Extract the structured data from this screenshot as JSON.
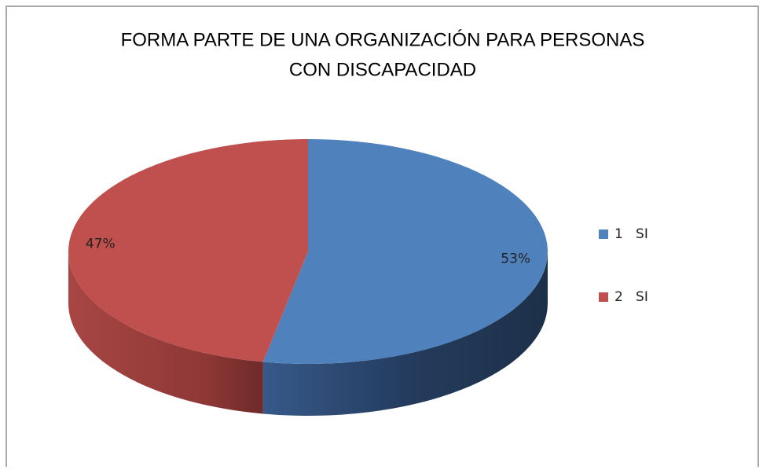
{
  "chart_data": {
    "type": "pie",
    "title": [
      "FORMA PARTE DE UNA ORGANIZACIÓN PARA PERSONAS",
      "CON DISCAPACIDAD"
    ],
    "categories": [
      "1   SI",
      "2   SI"
    ],
    "values": [
      53,
      47
    ],
    "value_labels": [
      "53%",
      "47%"
    ],
    "colors": [
      "#4f81bd",
      "#c0504d"
    ],
    "legend": "right"
  }
}
